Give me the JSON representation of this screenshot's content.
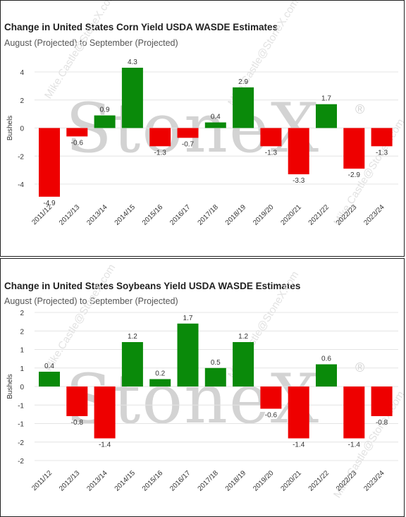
{
  "chart_data": [
    {
      "type": "bar",
      "title": "Change in United States Corn Yield USDA WASDE Estimates",
      "subtitle": "August (Projected) to September (Projected)",
      "ylabel": "Bushels",
      "xlabel": "",
      "ylim": [
        -5.5,
        5
      ],
      "yticks": [
        4,
        2,
        0,
        -2,
        -4
      ],
      "ytick_labels": [
        "4",
        "2",
        "0",
        "-2",
        "-4"
      ],
      "grid": true,
      "categories": [
        "2011/12",
        "2012/13",
        "2013/14",
        "2014/15",
        "2015/16",
        "2016/17",
        "2017/18",
        "2018/19",
        "2019/20",
        "2020/21",
        "2021/22",
        "2022/23",
        "2023/24"
      ],
      "values": [
        -4.9,
        -0.6,
        0.9,
        4.3,
        -1.3,
        -0.7,
        0.4,
        2.9,
        -1.3,
        -3.3,
        1.7,
        -2.9,
        -1.3
      ],
      "data_labels": [
        "-4.9",
        "-0.6",
        "0.9",
        "4.3",
        "-1.3",
        "-0.7",
        "0.4",
        "2.9",
        "-1.3",
        "-3.3",
        "1.7",
        "-2.9",
        "-1.3"
      ]
    },
    {
      "type": "bar",
      "title": "Change in United States Soybeans Yield USDA WASDE Estimates",
      "subtitle": "August (Projected) to September (Projected)",
      "ylabel": "Bushels",
      "xlabel": "",
      "ylim": [
        -2.1,
        2
      ],
      "yticks": [
        2,
        1.5,
        1,
        0.5,
        0,
        -0.5,
        -1,
        -1.5,
        -2
      ],
      "ytick_labels": [
        "2",
        "2",
        "1",
        "1",
        "0",
        "-1",
        "-1",
        "-2",
        "-2"
      ],
      "grid": true,
      "categories": [
        "2011/12",
        "2012/13",
        "2013/14",
        "2014/15",
        "2015/16",
        "2016/17",
        "2017/18",
        "2018/19",
        "2019/20",
        "2020/21",
        "2021/22",
        "2022/23",
        "2023/24"
      ],
      "values": [
        0.4,
        -0.8,
        -1.4,
        1.2,
        0.2,
        1.7,
        0.5,
        1.2,
        -0.6,
        -1.4,
        0.6,
        -1.4,
        -0.8
      ],
      "data_labels": [
        "0.4",
        "-0.8",
        "-1.4",
        "1.2",
        "0.2",
        "1.7",
        "0.5",
        "1.2",
        "-0.6",
        "-1.4",
        "0.6",
        "-1.4",
        "-0.8"
      ]
    }
  ],
  "colors": {
    "positive": "#0a8a0a",
    "negative": "#ee0000",
    "grid": "#e4e4e4"
  },
  "watermark": {
    "brand": "StoneX",
    "registered": "®",
    "diagonal_text": "Mike.Castle@StoneX.com"
  }
}
